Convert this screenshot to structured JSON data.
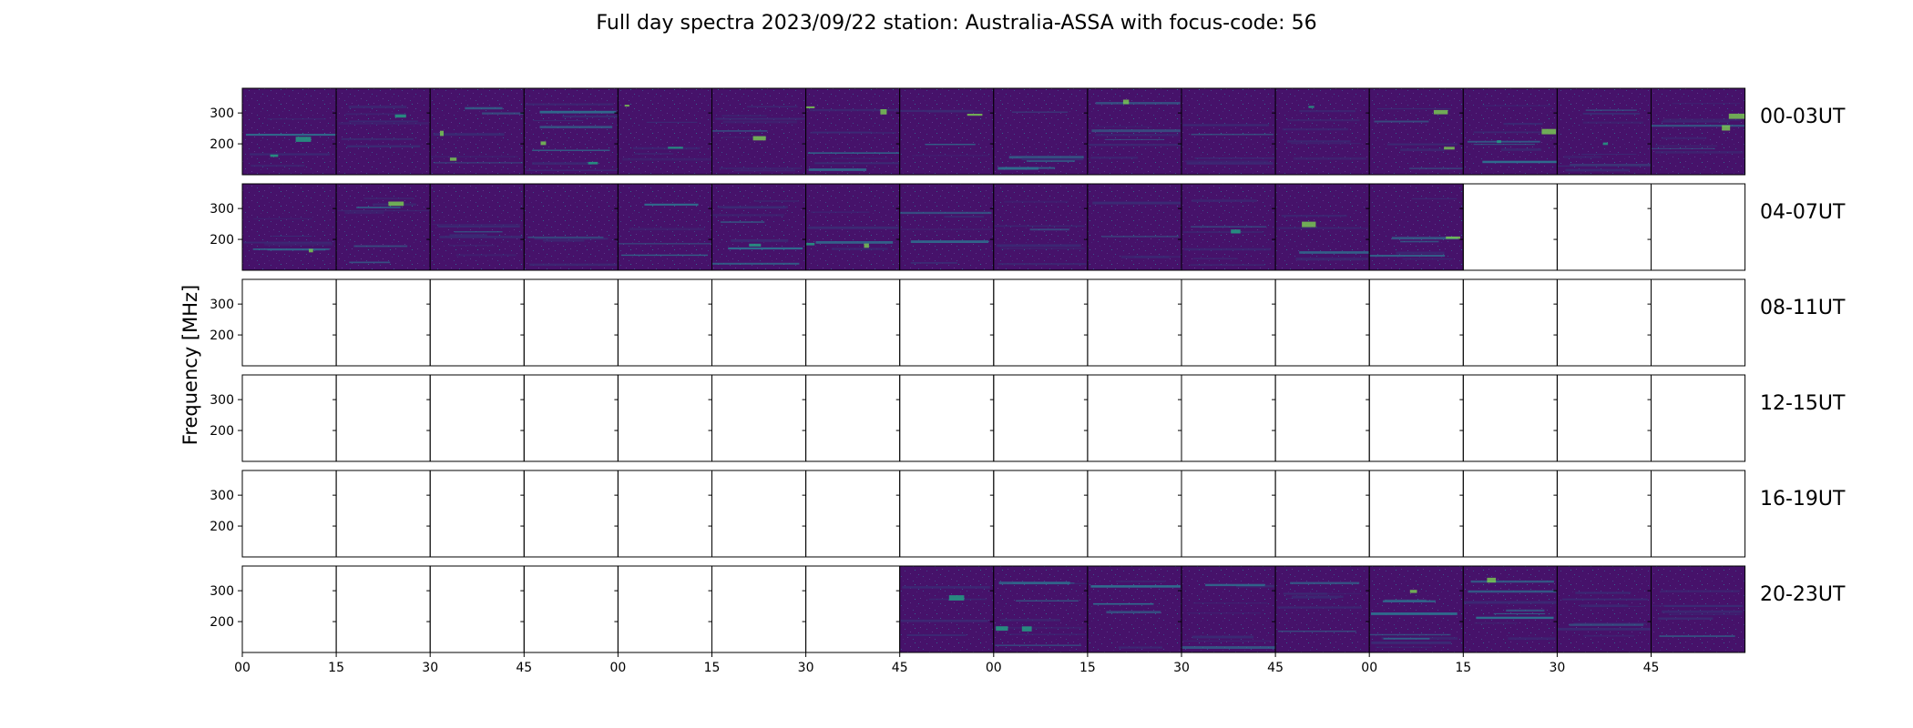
{
  "chart_data": {
    "type": "heatmap",
    "title": "Full day spectra 2023/09/22 station: Australia-ASSA with focus-code: 56",
    "ylabel": "Frequency [MHz]",
    "ytick_labels": [
      "300",
      "200"
    ],
    "yticks": [
      300,
      200
    ],
    "ylim": [
      100,
      380
    ],
    "xtick_labels": [
      "00",
      "15",
      "30",
      "45",
      "00",
      "15",
      "30",
      "45",
      "00",
      "15",
      "30",
      "45",
      "00",
      "15",
      "30",
      "45"
    ],
    "colormap": "viridis",
    "colors": {
      "low": "#440154",
      "mid_low": "#3b2a74",
      "mid": "#2e6e8e",
      "high": "#21a685",
      "peak": "#7ad151"
    },
    "rows": [
      {
        "label": "00-03UT",
        "panels_with_data": [
          1,
          1,
          1,
          1,
          1,
          1,
          1,
          1,
          1,
          1,
          1,
          1,
          1,
          1,
          1,
          1
        ]
      },
      {
        "label": "04-07UT",
        "panels_with_data": [
          1,
          1,
          1,
          1,
          1,
          1,
          1,
          1,
          1,
          1,
          1,
          1,
          1,
          0,
          0,
          0
        ]
      },
      {
        "label": "08-11UT",
        "panels_with_data": [
          0,
          0,
          0,
          0,
          0,
          0,
          0,
          0,
          0,
          0,
          0,
          0,
          0,
          0,
          0,
          0
        ]
      },
      {
        "label": "12-15UT",
        "panels_with_data": [
          0,
          0,
          0,
          0,
          0,
          0,
          0,
          0,
          0,
          0,
          0,
          0,
          0,
          0,
          0,
          0
        ]
      },
      {
        "label": "16-19UT",
        "panels_with_data": [
          0,
          0,
          0,
          0,
          0,
          0,
          0,
          0,
          0,
          0,
          0,
          0,
          0,
          0,
          0,
          0
        ]
      },
      {
        "label": "20-23UT",
        "panels_with_data": [
          0,
          0,
          0,
          0,
          0,
          0,
          0,
          1,
          1,
          1,
          1,
          1,
          1,
          1,
          1,
          1
        ]
      }
    ]
  }
}
